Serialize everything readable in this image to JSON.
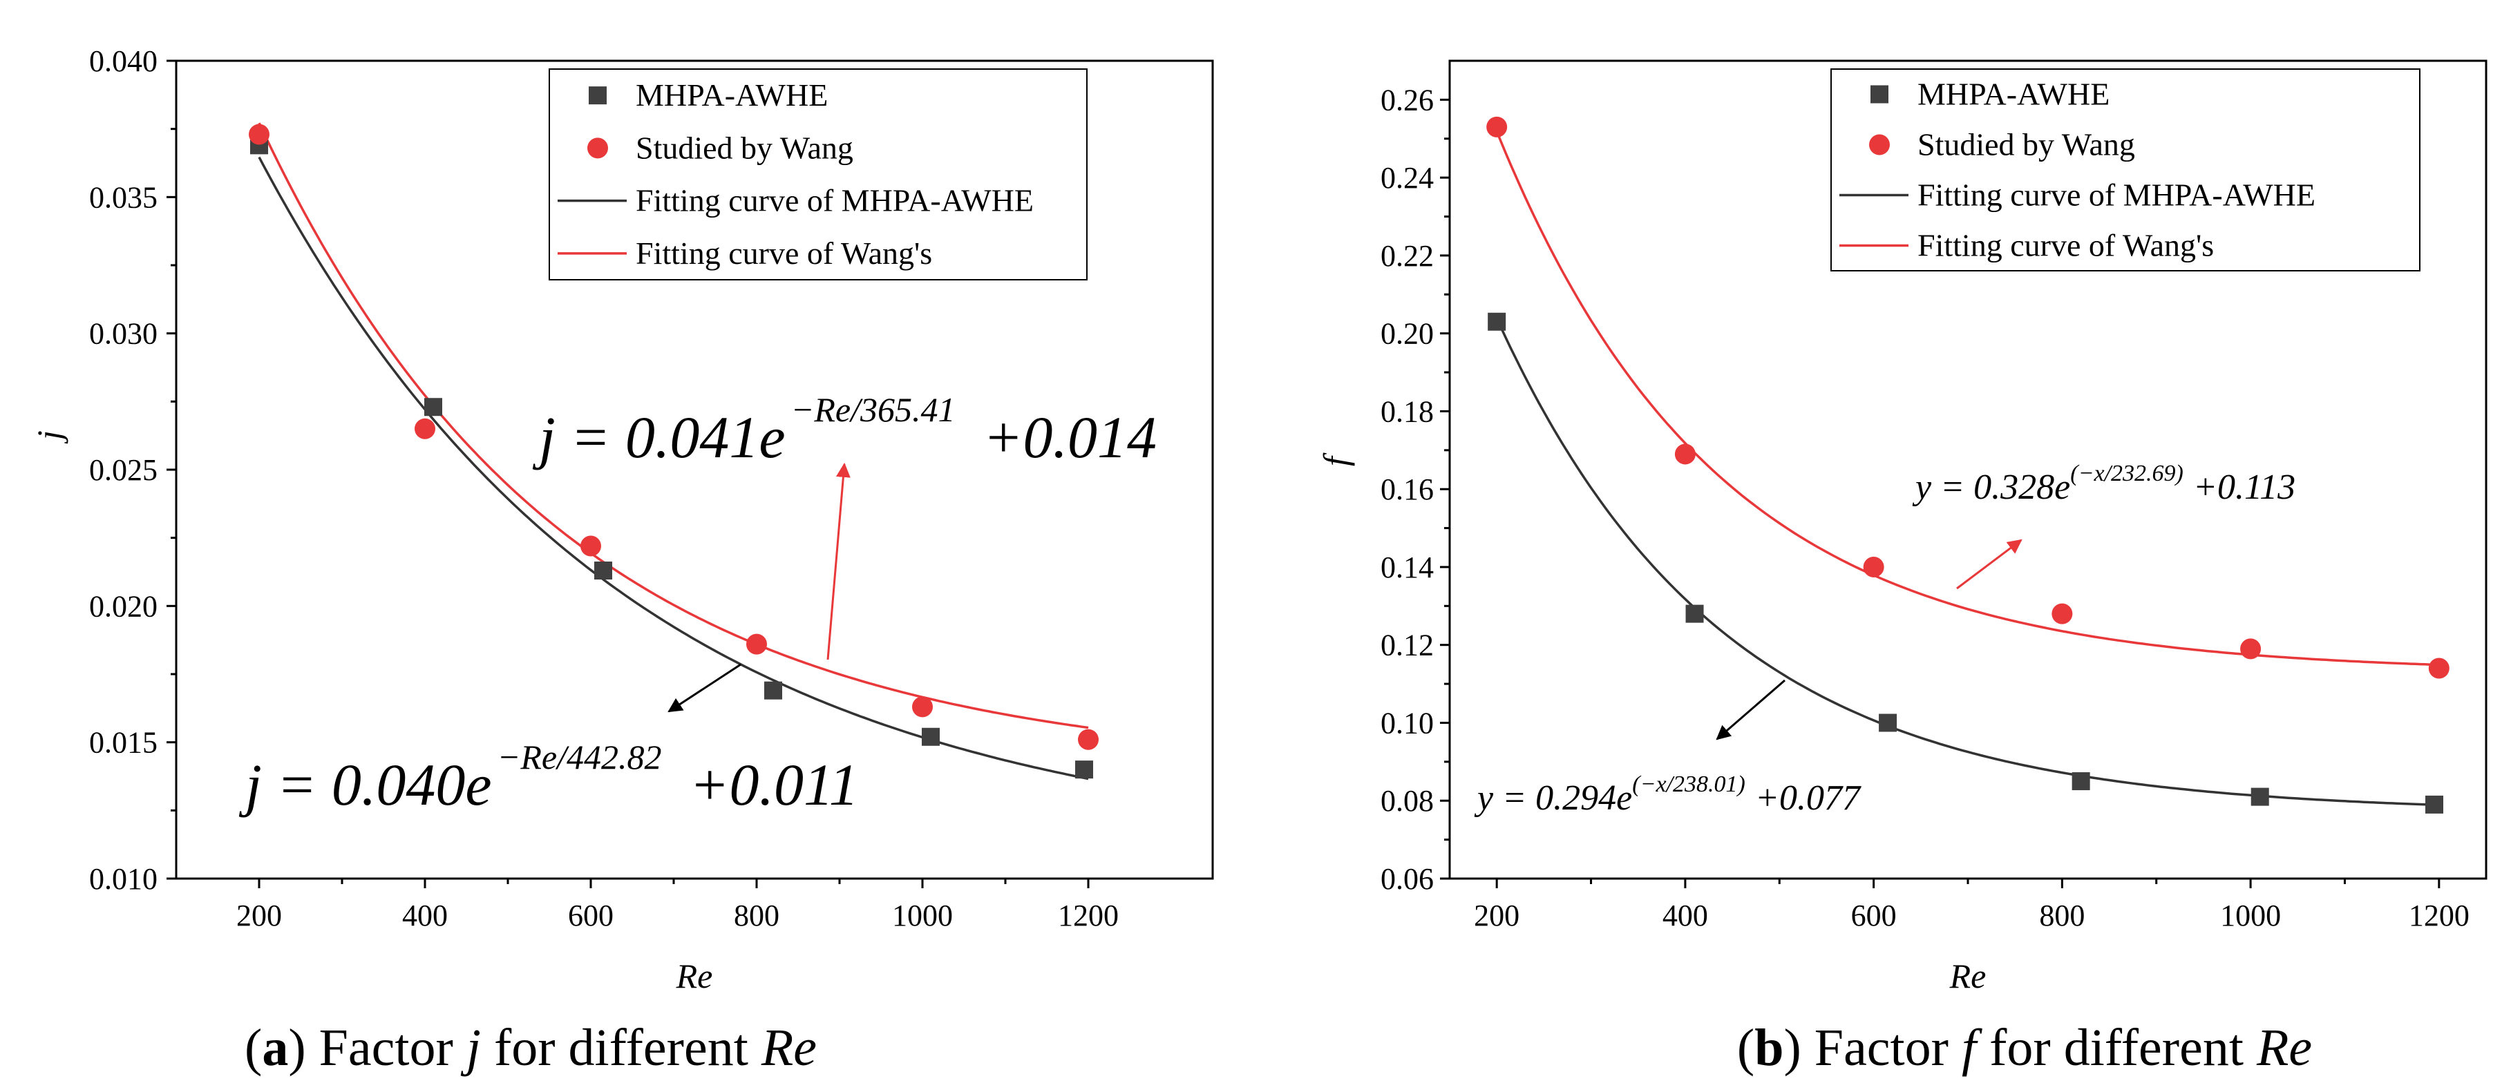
{
  "chart_data": [
    {
      "type": "scatter",
      "panel": "a",
      "xlabel": "Re",
      "ylabel": "j",
      "xlim": [
        100,
        1350
      ],
      "ylim": [
        0.01,
        0.04
      ],
      "xticks": [
        200,
        400,
        600,
        800,
        1000,
        1200
      ],
      "yticks": [
        0.01,
        0.015,
        0.02,
        0.025,
        0.03,
        0.035,
        0.04
      ],
      "ytick_labels": [
        "0.010",
        "0.015",
        "0.020",
        "0.025",
        "0.030",
        "0.035",
        "0.040"
      ],
      "legend_position": "top-right",
      "legend": [
        "MHPA-AWHE",
        "Studied by Wang",
        "Fitting curve of MHPA-AWHE",
        "Fitting curve of Wang's"
      ],
      "series": [
        {
          "name": "MHPA-AWHE",
          "marker": "square",
          "color": "#404040",
          "x": [
            200,
            410,
            615,
            820,
            1010,
            1195
          ],
          "y": [
            0.0369,
            0.0273,
            0.0213,
            0.0169,
            0.0152,
            0.014
          ]
        },
        {
          "name": "Studied by Wang",
          "marker": "circle",
          "color": "#e8383a",
          "x": [
            200,
            400,
            600,
            800,
            1000,
            1200
          ],
          "y": [
            0.0373,
            0.0265,
            0.0222,
            0.0186,
            0.0163,
            0.0151
          ]
        }
      ],
      "fits": [
        {
          "name": "Fitting curve of MHPA-AWHE",
          "color": "#333333",
          "A": 0.04,
          "t": 442.82,
          "c": 0.011
        },
        {
          "name": "Fitting curve of Wang's",
          "color": "#e8383a",
          "A": 0.041,
          "t": 365.41,
          "c": 0.014
        }
      ],
      "annotations": [
        {
          "base": "j = 0.041e",
          "exp": "−Re/365.41",
          "tail": "+0.014"
        },
        {
          "base": "j = 0.040e",
          "exp": "−Re/442.82",
          "tail": "+0.011"
        }
      ]
    },
    {
      "type": "scatter",
      "panel": "b",
      "xlabel": "Re",
      "ylabel": "f",
      "xlim": [
        150,
        1250
      ],
      "ylim": [
        0.06,
        0.27
      ],
      "xticks": [
        200,
        400,
        600,
        800,
        1000,
        1200
      ],
      "yticks": [
        0.06,
        0.08,
        0.1,
        0.12,
        0.14,
        0.16,
        0.18,
        0.2,
        0.22,
        0.24,
        0.26
      ],
      "ytick_labels": [
        "0.06",
        "0.08",
        "0.10",
        "0.12",
        "0.14",
        "0.16",
        "0.18",
        "0.20",
        "0.22",
        "0.24",
        "0.26"
      ],
      "legend_position": "top-right",
      "legend": [
        "MHPA-AWHE",
        "Studied by Wang",
        "Fitting curve of MHPA-AWHE",
        "Fitting curve of Wang's"
      ],
      "series": [
        {
          "name": "MHPA-AWHE",
          "marker": "square",
          "color": "#404040",
          "x": [
            200,
            410,
            615,
            820,
            1010,
            1195
          ],
          "y": [
            0.203,
            0.128,
            0.1,
            0.085,
            0.081,
            0.079
          ]
        },
        {
          "name": "Studied by Wang",
          "marker": "circle",
          "color": "#e8383a",
          "x": [
            200,
            400,
            600,
            800,
            1000,
            1200
          ],
          "y": [
            0.253,
            0.169,
            0.14,
            0.128,
            0.119,
            0.114
          ]
        }
      ],
      "fits": [
        {
          "name": "Fitting curve of MHPA-AWHE",
          "color": "#333333",
          "A": 0.294,
          "t": 238.01,
          "c": 0.077
        },
        {
          "name": "Fitting curve of Wang's",
          "color": "#e8383a",
          "A": 0.328,
          "t": 232.69,
          "c": 0.113
        }
      ],
      "annotations": [
        {
          "base": "y = 0.328e",
          "exp": "(−x/232.69)",
          "tail": "+0.113"
        },
        {
          "base": "y = 0.294e",
          "exp": "(−x/238.01)",
          "tail": "+0.077"
        }
      ]
    }
  ],
  "captions": [
    {
      "label": "a",
      "text": " Factor ",
      "var": "j",
      "rest": " for different ",
      "var2": "Re"
    },
    {
      "label": "b",
      "text": " Factor ",
      "var": "f",
      "rest": " for different ",
      "var2": "Re"
    }
  ]
}
